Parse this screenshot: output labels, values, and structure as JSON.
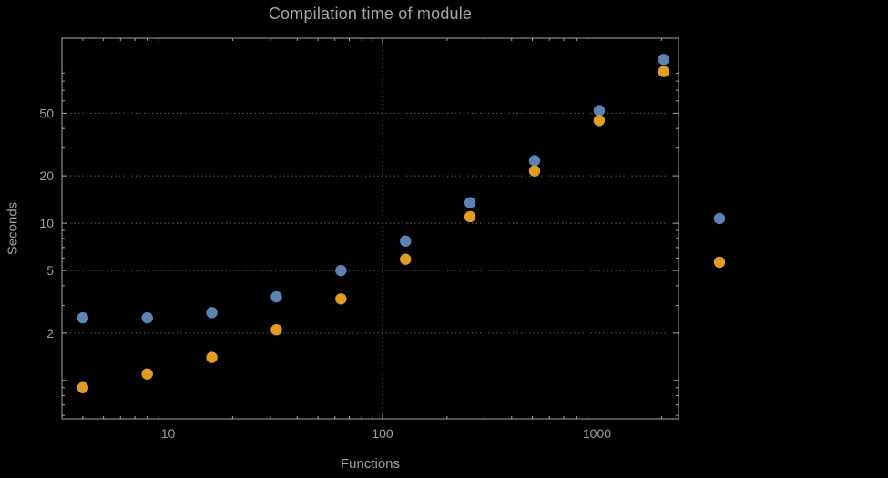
{
  "page": {
    "background": "#000000"
  },
  "chart_data": {
    "type": "scatter",
    "title": "Compilation time of module",
    "xlabel": "Functions",
    "ylabel": "Seconds",
    "x_scale": "log",
    "y_scale": "log",
    "xlim": [
      3.2,
      2400
    ],
    "ylim": [
      0.57,
      150
    ],
    "x_ticks": [
      10,
      100,
      1000
    ],
    "y_ticks": [
      2,
      5,
      10,
      20,
      50
    ],
    "grid": {
      "style": "dotted",
      "x_values": [
        10,
        100,
        1000
      ],
      "y_values": [
        2,
        5,
        10,
        20,
        50
      ],
      "color": "#6f6f6f"
    },
    "frame_color": "#a6a6a6",
    "text_color": "#9e9e9e",
    "marker_radius": 6.2,
    "x": [
      4,
      8,
      16,
      32,
      64,
      128,
      256,
      512,
      1024,
      2048
    ],
    "series": [
      {
        "name": "series-blue",
        "color": "#5e82b5",
        "values": [
          2.5,
          2.5,
          2.7,
          3.4,
          5.0,
          7.7,
          13.5,
          25,
          52,
          110
        ]
      },
      {
        "name": "series-orange",
        "color": "#e19c24",
        "values": [
          0.9,
          1.1,
          1.4,
          2.1,
          3.3,
          5.9,
          11,
          21.5,
          45,
          92
        ]
      }
    ],
    "legend": {
      "labels_visible": false,
      "markers": [
        {
          "series": "series-blue",
          "color": "#5e82b5"
        },
        {
          "series": "series-orange",
          "color": "#e19c24"
        }
      ]
    }
  }
}
